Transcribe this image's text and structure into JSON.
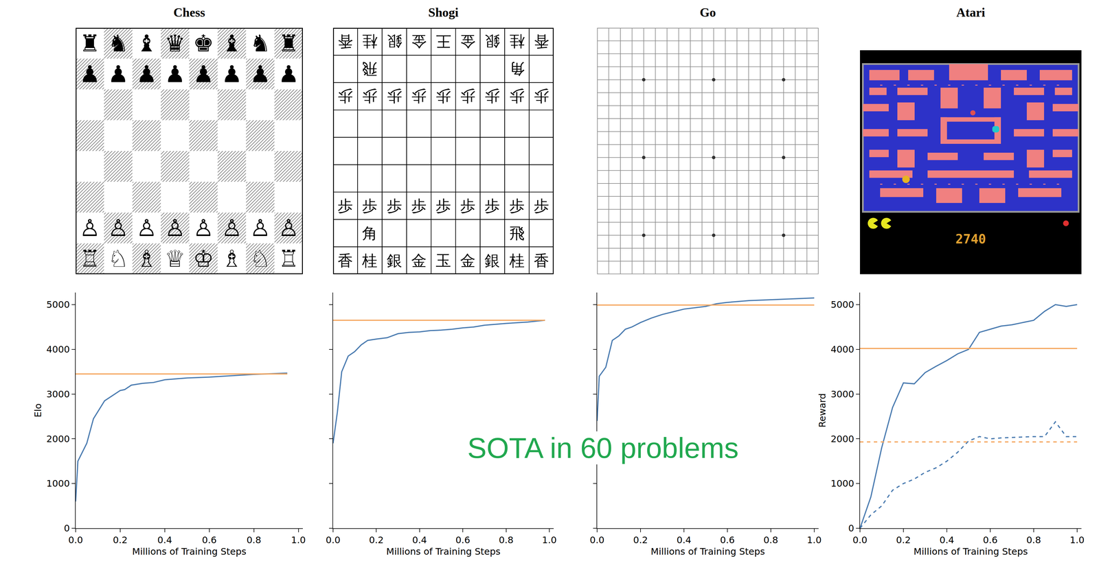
{
  "chart_data": [
    {
      "type": "line",
      "title": "Chess",
      "x_label": "Millions of Training Steps",
      "y_label": "Elo",
      "series": [
        {
          "color": "#4a7bb0",
          "line_style": "solid",
          "x": [
            0,
            0.01,
            0.05,
            0.08,
            0.13,
            0.17,
            0.2,
            0.22,
            0.25,
            0.3,
            0.35,
            0.4,
            0.5,
            0.6,
            0.7,
            0.8,
            0.9,
            0.95
          ],
          "values": [
            600,
            1500,
            1900,
            2450,
            2850,
            2980,
            3080,
            3100,
            3200,
            3240,
            3260,
            3320,
            3360,
            3380,
            3410,
            3440,
            3460,
            3470
          ]
        },
        {
          "color": "#f5a55c",
          "line_style": "solid",
          "x": [
            0,
            0.95
          ],
          "values": [
            3450,
            3450
          ]
        }
      ],
      "xlim": [
        0,
        1.02
      ],
      "xticks": [
        {
          "value": 0,
          "label": "0.0"
        },
        0.2,
        0.4,
        0.6,
        0.8,
        {
          "value": 1,
          "label": "1.0"
        }
      ],
      "ylim": [
        0,
        5270
      ],
      "yticks": [
        0,
        1000,
        2000,
        3000,
        4000,
        5000
      ],
      "grid": false
    },
    {
      "type": "line",
      "title": "Shogi",
      "x_label": "Millions of Training Steps",
      "tick_labels": "x",
      "series": [
        {
          "color": "#4a7bb0",
          "line_style": "solid",
          "x": [
            0,
            0.02,
            0.04,
            0.07,
            0.1,
            0.13,
            0.16,
            0.2,
            0.25,
            0.3,
            0.35,
            0.4,
            0.45,
            0.5,
            0.55,
            0.6,
            0.65,
            0.7,
            0.8,
            0.9,
            0.98
          ],
          "values": [
            1900,
            2600,
            3500,
            3850,
            3950,
            4100,
            4200,
            4230,
            4260,
            4350,
            4380,
            4390,
            4420,
            4430,
            4450,
            4480,
            4500,
            4540,
            4580,
            4610,
            4650
          ]
        },
        {
          "color": "#f5a55c",
          "line_style": "solid",
          "x": [
            0,
            0.98
          ],
          "values": [
            4650,
            4650
          ]
        }
      ],
      "xlim": [
        0,
        1.02
      ],
      "xticks": [
        {
          "value": 0,
          "label": "0.0"
        },
        0.2,
        0.4,
        0.6,
        0.8,
        {
          "value": 1,
          "label": "1.0"
        }
      ],
      "ylim": [
        0,
        5270
      ],
      "yticks": [
        0,
        1000,
        2000,
        3000,
        4000,
        5000
      ],
      "grid": false
    },
    {
      "type": "line",
      "title": "Go",
      "x_label": "Millions of Training Steps",
      "tick_labels": "x",
      "series": [
        {
          "color": "#4a7bb0",
          "line_style": "solid",
          "x": [
            0,
            0.01,
            0.04,
            0.07,
            0.1,
            0.13,
            0.16,
            0.2,
            0.25,
            0.3,
            0.35,
            0.4,
            0.5,
            0.55,
            0.6,
            0.7,
            0.8,
            0.9,
            1.0
          ],
          "values": [
            2400,
            3400,
            3600,
            4200,
            4300,
            4450,
            4500,
            4600,
            4700,
            4780,
            4840,
            4900,
            4960,
            5020,
            5050,
            5090,
            5110,
            5130,
            5150
          ]
        },
        {
          "color": "#f5a55c",
          "line_style": "solid",
          "x": [
            0,
            1.0
          ],
          "values": [
            4990,
            4990
          ]
        }
      ],
      "xlim": [
        0,
        1.02
      ],
      "xticks": [
        {
          "value": 0,
          "label": "0.0"
        },
        0.2,
        0.4,
        0.6,
        0.8,
        {
          "value": 1,
          "label": "1.0"
        }
      ],
      "ylim": [
        0,
        5270
      ],
      "yticks": [
        0,
        1000,
        2000,
        3000,
        4000,
        5000
      ],
      "grid": false
    },
    {
      "type": "line",
      "title": "Atari",
      "x_label": "Millions of Training Steps",
      "y_label": "Reward",
      "series": [
        {
          "color": "#4a7bb0",
          "line_style": "solid",
          "x": [
            0,
            0.05,
            0.1,
            0.15,
            0.2,
            0.25,
            0.3,
            0.35,
            0.4,
            0.45,
            0.5,
            0.55,
            0.6,
            0.65,
            0.7,
            0.75,
            0.8,
            0.85,
            0.9,
            0.95,
            1.0
          ],
          "values": [
            0,
            700,
            1800,
            2700,
            3250,
            3230,
            3480,
            3620,
            3750,
            3900,
            4000,
            4380,
            4450,
            4520,
            4550,
            4600,
            4650,
            4850,
            5000,
            4960,
            5000
          ]
        },
        {
          "color": "#f5a55c",
          "line_style": "solid",
          "x": [
            0,
            1.0
          ],
          "values": [
            4020,
            4020
          ]
        },
        {
          "color": "#4a7bb0",
          "line_style": "dashed",
          "x": [
            0,
            0.05,
            0.1,
            0.15,
            0.2,
            0.25,
            0.3,
            0.35,
            0.4,
            0.45,
            0.5,
            0.55,
            0.6,
            0.65,
            0.7,
            0.75,
            0.8,
            0.85,
            0.9,
            0.95,
            1.0
          ],
          "values": [
            0,
            300,
            500,
            850,
            1000,
            1100,
            1250,
            1350,
            1500,
            1700,
            1950,
            2050,
            2000,
            2020,
            2030,
            2040,
            2050,
            2050,
            2380,
            2050,
            2050
          ]
        },
        {
          "color": "#f5a55c",
          "line_style": "dashed",
          "x": [
            0,
            1.0
          ],
          "values": [
            1930,
            1930
          ]
        }
      ],
      "xlim": [
        0,
        1.02
      ],
      "xticks": [
        {
          "value": 0,
          "label": "0.0"
        },
        0.2,
        0.4,
        0.6,
        0.8,
        {
          "value": 1,
          "label": "1.0"
        }
      ],
      "ylim": [
        0,
        5270
      ],
      "yticks": [
        0,
        1000,
        2000,
        3000,
        4000,
        5000
      ],
      "grid": false
    }
  ],
  "boards": {
    "chess": {
      "rows": [
        [
          "♜",
          "♞",
          "♝",
          "♛",
          "♚",
          "♝",
          "♞",
          "♜"
        ],
        [
          "♟",
          "♟",
          "♟",
          "♟",
          "♟",
          "♟",
          "♟",
          "♟"
        ],
        [
          null,
          null,
          null,
          null,
          null,
          null,
          null,
          null
        ],
        [
          null,
          null,
          null,
          null,
          null,
          null,
          null,
          null
        ],
        [
          null,
          null,
          null,
          null,
          null,
          null,
          null,
          null
        ],
        [
          null,
          null,
          null,
          null,
          null,
          null,
          null,
          null
        ],
        [
          "♙",
          "♙",
          "♙",
          "♙",
          "♙",
          "♙",
          "♙",
          "♙"
        ],
        [
          "♖",
          "♘",
          "♗",
          "♕",
          "♔",
          "♗",
          "♘",
          "♖"
        ]
      ]
    },
    "shogi": {
      "rows": [
        [
          "香",
          "桂",
          "銀",
          "金",
          "王",
          "金",
          "銀",
          "桂",
          "香"
        ],
        [
          null,
          "飛",
          null,
          null,
          null,
          null,
          null,
          "角",
          null
        ],
        [
          "歩",
          "歩",
          "歩",
          "歩",
          "歩",
          "歩",
          "歩",
          "歩",
          "歩"
        ],
        [
          null,
          null,
          null,
          null,
          null,
          null,
          null,
          null,
          null
        ],
        [
          null,
          null,
          null,
          null,
          null,
          null,
          null,
          null,
          null
        ],
        [
          null,
          null,
          null,
          null,
          null,
          null,
          null,
          null,
          null
        ],
        [
          "歩",
          "歩",
          "歩",
          "歩",
          "歩",
          "歩",
          "歩",
          "歩",
          "歩"
        ],
        [
          null,
          "角",
          null,
          null,
          null,
          null,
          null,
          "飛",
          null
        ],
        [
          "香",
          "桂",
          "銀",
          "金",
          "玉",
          "金",
          "銀",
          "桂",
          "香"
        ]
      ]
    },
    "atari": {
      "score": "2740"
    }
  },
  "annotation": {
    "text": "SOTA in 60 problems",
    "color": "#21a84f"
  }
}
